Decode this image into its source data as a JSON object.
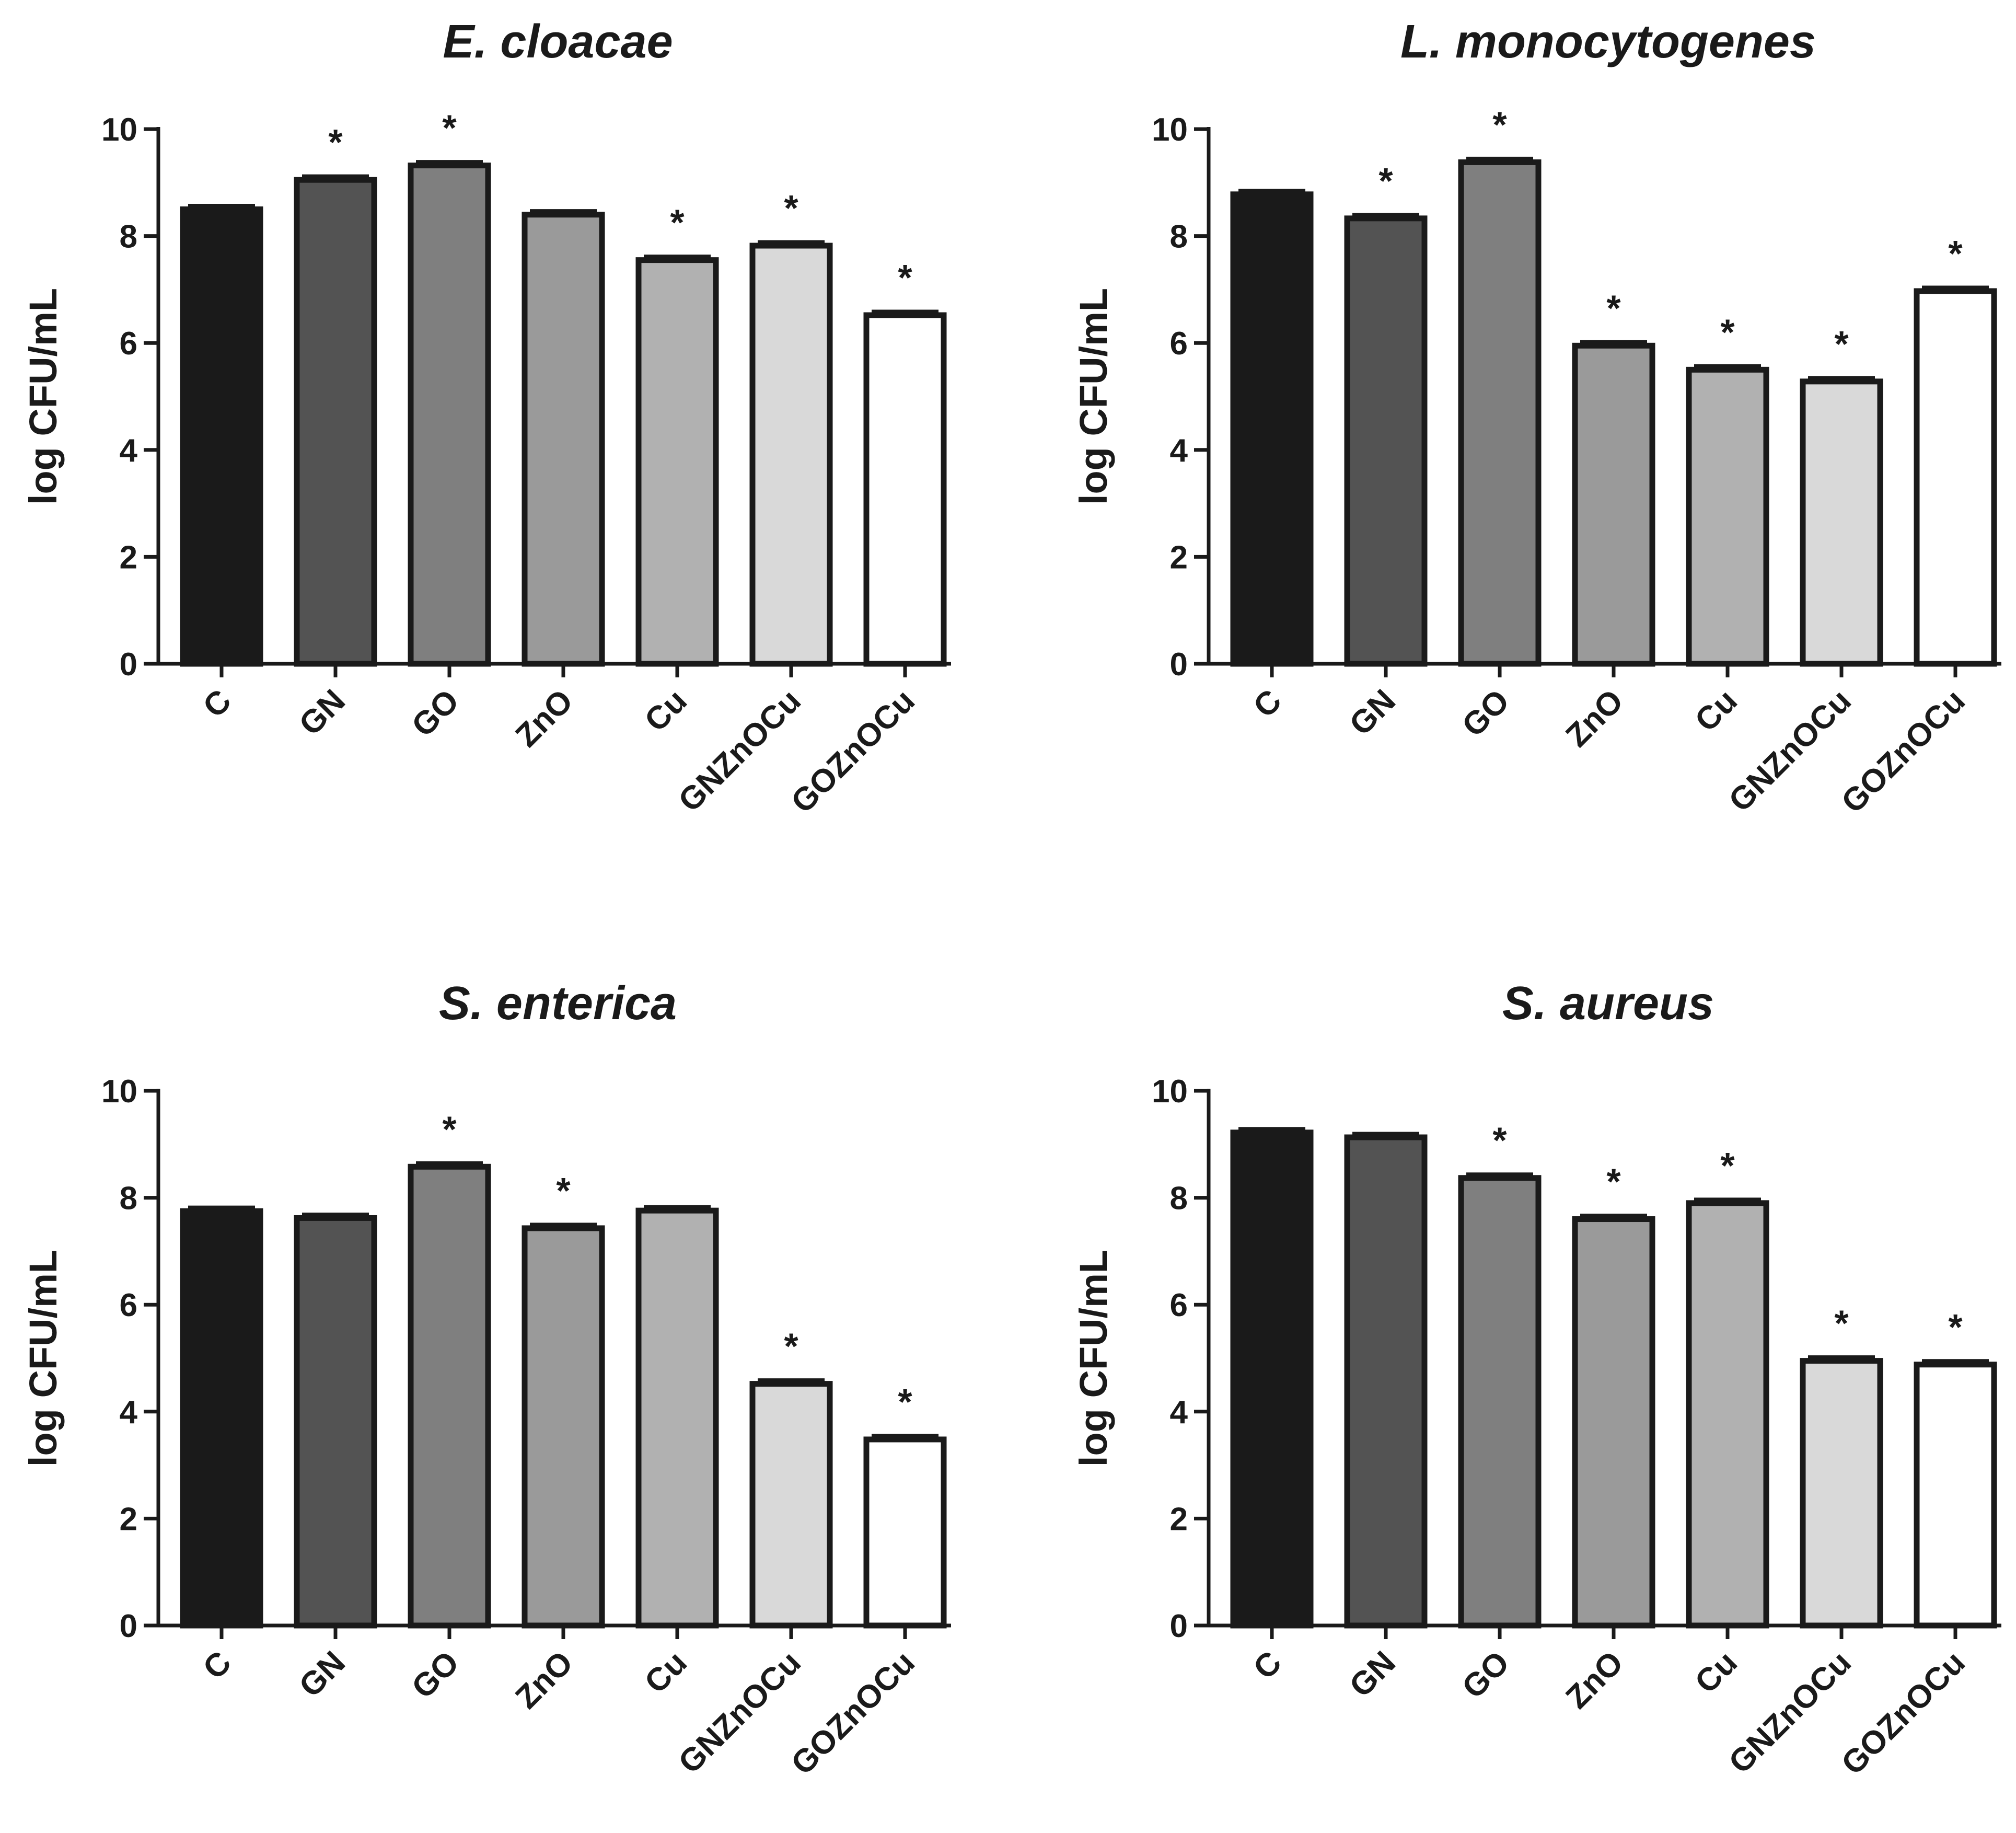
{
  "chart_data": [
    {
      "type": "bar",
      "title": "E. cloacae",
      "xlabel": "",
      "ylabel": "log CFU/mL",
      "ylim": [
        0,
        10
      ],
      "yticks": [
        "0",
        "2",
        "4",
        "6",
        "8",
        "10"
      ],
      "categories": [
        "C",
        "GN",
        "GO",
        "ZnO",
        "Cu",
        "GNZnOCu",
        "GOZnOCu"
      ],
      "values": [
        8.5,
        9.05,
        9.32,
        8.4,
        7.55,
        7.82,
        6.52
      ],
      "significance": [
        "",
        "*",
        "*",
        "",
        "*",
        "*",
        "*"
      ]
    },
    {
      "type": "bar",
      "title": "L. monocytogenes",
      "xlabel": "",
      "ylabel": "log CFU/mL",
      "ylim": [
        0,
        10
      ],
      "yticks": [
        "0",
        "2",
        "4",
        "6",
        "8",
        "10"
      ],
      "categories": [
        "C",
        "GN",
        "GO",
        "ZnO",
        "Cu",
        "GNZnOCu",
        "GOZnOCu"
      ],
      "values": [
        8.78,
        8.33,
        9.38,
        5.95,
        5.5,
        5.28,
        6.97
      ],
      "significance": [
        "",
        "*",
        "*",
        "*",
        "*",
        "*",
        "*"
      ]
    },
    {
      "type": "bar",
      "title": "S. enterica",
      "xlabel": "",
      "ylabel": "log CFU/mL",
      "ylim": [
        0,
        10
      ],
      "yticks": [
        "0",
        "2",
        "4",
        "6",
        "8",
        "10"
      ],
      "categories": [
        "C",
        "GN",
        "GO",
        "ZnO",
        "Cu",
        "GNZnOCu",
        "GOZnOCu"
      ],
      "values": [
        7.75,
        7.62,
        8.58,
        7.43,
        7.76,
        4.52,
        3.48
      ],
      "significance": [
        "",
        "",
        "*",
        "*",
        "",
        "*",
        "*"
      ]
    },
    {
      "type": "bar",
      "title": "S. aureus",
      "xlabel": "",
      "ylabel": "log CFU/mL",
      "ylim": [
        0,
        10
      ],
      "yticks": [
        "0",
        "2",
        "4",
        "6",
        "8",
        "10"
      ],
      "categories": [
        "C",
        "GN",
        "GO",
        "ZnO",
        "Cu",
        "GNZnOCu",
        "GOZnOCu"
      ],
      "values": [
        9.22,
        9.13,
        8.37,
        7.6,
        7.9,
        4.95,
        4.88
      ],
      "significance": [
        "",
        "",
        "*",
        "*",
        "*",
        "*",
        "*"
      ]
    }
  ],
  "colors": {
    "bars": [
      "#1a1a1a",
      "#535353",
      "#7f7f7f",
      "#9a9a9a",
      "#b1b1b1",
      "#d9d9d9",
      "#ffffff"
    ],
    "stroke": "#1a1a1a"
  }
}
